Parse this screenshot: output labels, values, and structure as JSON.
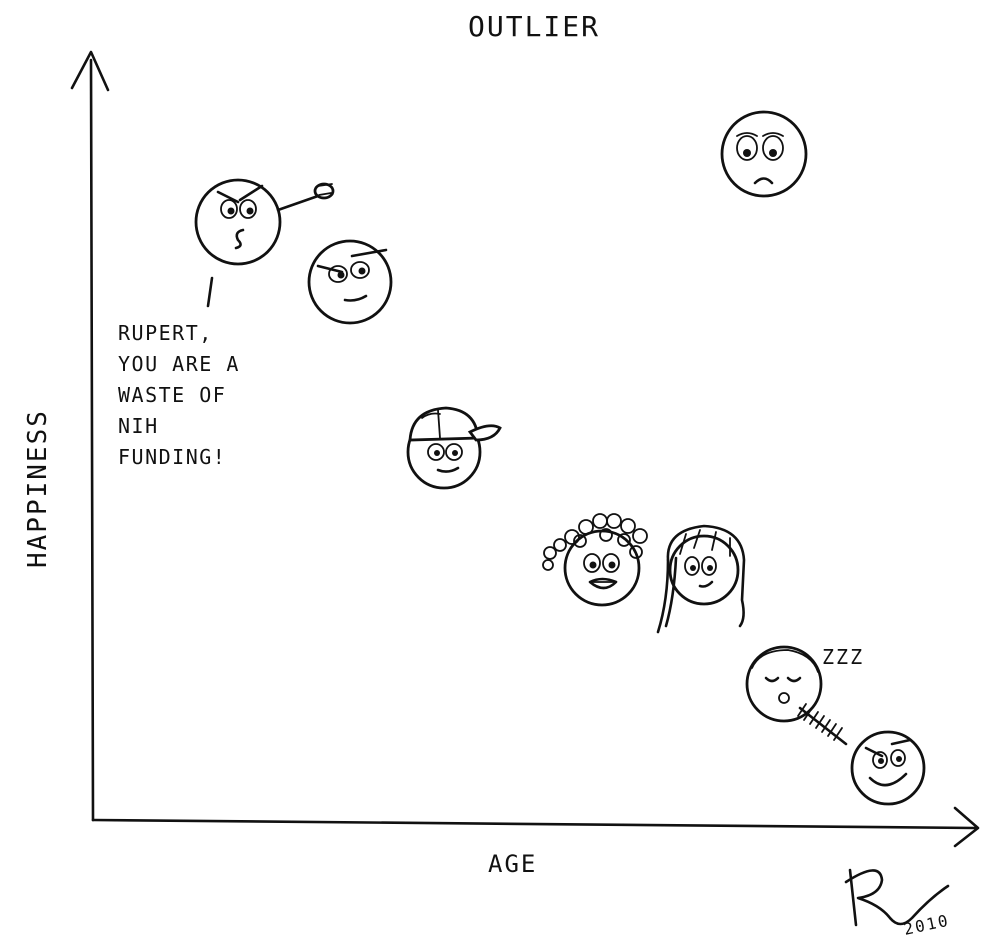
{
  "labels": {
    "top": "OUTLIER",
    "y_axis": "HAPPINESS",
    "x_axis": "AGE",
    "snore": "ZZZ",
    "year": "2010"
  },
  "speech": {
    "lines": [
      "RUPERT,",
      "YOU ARE A",
      "WASTE OF",
      "NIH",
      "FUNDING!"
    ]
  }
}
